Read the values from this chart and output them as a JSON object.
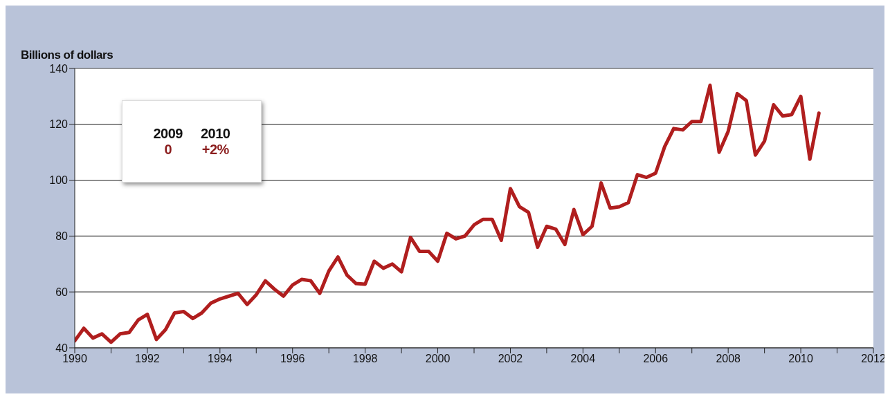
{
  "chart_data": {
    "type": "line",
    "ylabel": "Billions of dollars",
    "x": [
      1990,
      1990.25,
      1990.5,
      1990.75,
      1991,
      1991.25,
      1991.5,
      1991.75,
      1992,
      1992.25,
      1992.5,
      1992.75,
      1993,
      1993.25,
      1993.5,
      1993.75,
      1994,
      1994.25,
      1994.5,
      1994.75,
      1995,
      1995.25,
      1995.5,
      1995.75,
      1996,
      1996.25,
      1996.5,
      1996.75,
      1997,
      1997.25,
      1997.5,
      1997.75,
      1998,
      1998.25,
      1998.5,
      1998.75,
      1999,
      1999.25,
      1999.5,
      1999.75,
      2000,
      2000.25,
      2000.5,
      2000.75,
      2001,
      2001.25,
      2001.5,
      2001.75,
      2002,
      2002.25,
      2002.5,
      2002.75,
      2003,
      2003.25,
      2003.5,
      2003.75,
      2004,
      2004.25,
      2004.5,
      2004.75,
      2005,
      2005.25,
      2005.5,
      2005.75,
      2006,
      2006.25,
      2006.5,
      2006.75,
      2007,
      2007.25,
      2007.5,
      2007.75,
      2008,
      2008.25,
      2008.5,
      2008.75,
      2009,
      2009.25,
      2009.5,
      2009.75,
      2010,
      2010.25,
      2010.5
    ],
    "series": [
      {
        "color": "#b01e1e",
        "values": [
          42.5,
          47,
          43.5,
          45,
          42,
          45,
          45.5,
          50,
          52,
          43,
          46.5,
          52.5,
          53,
          50.5,
          52.5,
          56,
          57.5,
          58.5,
          59.5,
          55.5,
          59,
          64,
          61,
          58.5,
          62.5,
          64.5,
          64,
          59.5,
          67.5,
          72.5,
          66,
          63,
          62.8,
          71,
          68.5,
          70,
          67.2,
          79.5,
          74.5,
          74.5,
          71,
          81,
          79,
          80,
          84,
          86,
          86,
          78.5,
          97,
          90.5,
          88.5,
          76,
          83.5,
          82.5,
          77,
          89.5,
          80.5,
          83.5,
          99,
          90,
          90.5,
          92,
          102,
          101,
          102.5,
          112,
          118.5,
          118,
          121,
          121,
          134,
          110,
          117.5,
          131,
          128.5,
          109,
          114,
          127,
          123,
          123.5,
          130,
          107.5,
          124
        ]
      }
    ],
    "xlim": [
      1990,
      2012
    ],
    "xticks": [
      1990,
      {
        "value": 1991,
        "label": null
      },
      1992,
      {
        "value": 1993,
        "label": null
      },
      1994,
      {
        "value": 1995,
        "label": null
      },
      1996,
      {
        "value": 1997,
        "label": null
      },
      1998,
      {
        "value": 1999,
        "label": null
      },
      2000,
      {
        "value": 2001,
        "label": null
      },
      2002,
      {
        "value": 2003,
        "label": null
      },
      2004,
      {
        "value": 2005,
        "label": null
      },
      2006,
      {
        "value": 2007,
        "label": null
      },
      2008,
      {
        "value": 2009,
        "label": null
      },
      2010,
      {
        "value": 2011,
        "label": null
      },
      2012
    ],
    "ylim": [
      40,
      140
    ],
    "yticks": [
      40,
      60,
      80,
      100,
      120,
      140
    ],
    "grid": "y",
    "marker": "none",
    "line_style": "solid",
    "annotations": [
      "2009",
      "2010",
      "0",
      "+2%"
    ]
  }
}
